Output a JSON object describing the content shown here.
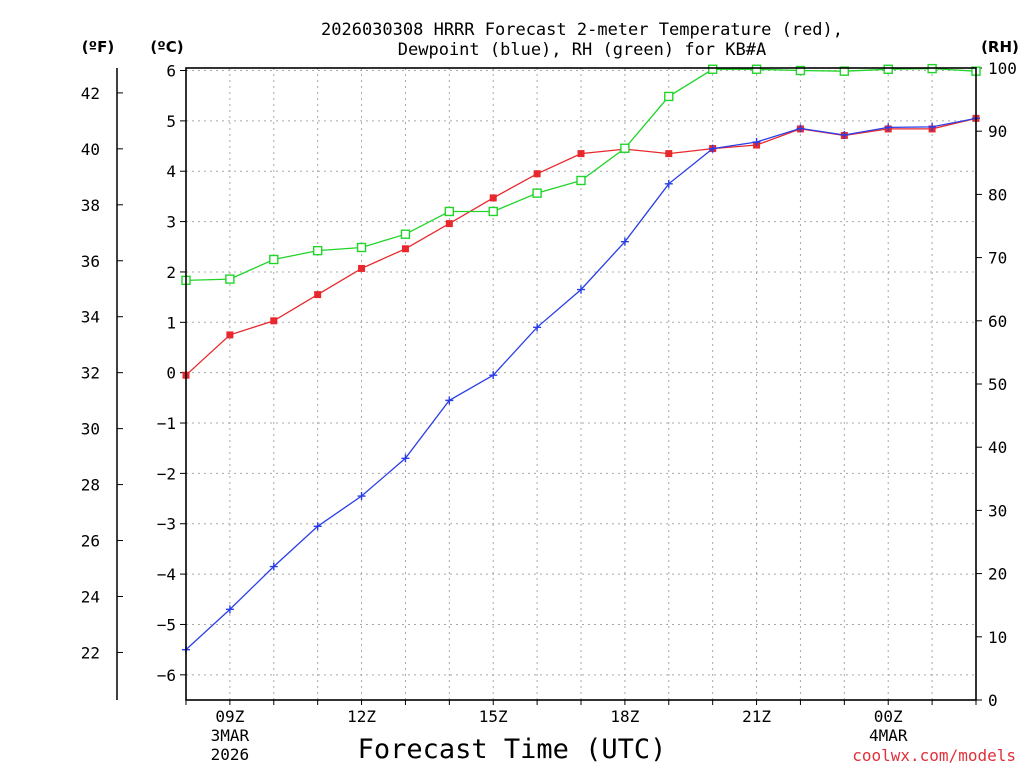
{
  "chart_data": {
    "type": "line",
    "title_line1": "2026030308 HRRR Forecast 2-meter Temperature (red),",
    "title_line2": "Dewpoint (blue), RH (green) for KB#A",
    "xlabel": "Forecast Time (UTC)",
    "credit": "coolwx.com/models",
    "units": {
      "fahrenheit": "(ºF)",
      "celsius": "(ºC)",
      "rh": "(RH)"
    },
    "grid": true,
    "x_hours": [
      8,
      9,
      10,
      11,
      12,
      13,
      14,
      15,
      16,
      17,
      18,
      19,
      20,
      21,
      22,
      23,
      24,
      25,
      26
    ],
    "xlim": [
      8,
      26
    ],
    "x_ticks": [
      {
        "hour": 9,
        "lines": [
          "09Z",
          "3MAR",
          "2026"
        ]
      },
      {
        "hour": 12,
        "lines": [
          "12Z"
        ]
      },
      {
        "hour": 15,
        "lines": [
          "15Z"
        ]
      },
      {
        "hour": 18,
        "lines": [
          "18Z"
        ]
      },
      {
        "hour": 21,
        "lines": [
          "21Z"
        ]
      },
      {
        "hour": 24,
        "lines": [
          "00Z",
          "4MAR"
        ]
      }
    ],
    "celsius_ylim": [
      -6.5,
      6.05
    ],
    "celsius_ticks": [
      {
        "value": 6,
        "label": "6"
      },
      {
        "value": 5,
        "label": "5"
      },
      {
        "value": 4,
        "label": "4"
      },
      {
        "value": 3,
        "label": "3"
      },
      {
        "value": 2,
        "label": "2"
      },
      {
        "value": 1,
        "label": "1"
      },
      {
        "value": 0,
        "label": "0"
      },
      {
        "value": -1,
        "label": "−1"
      },
      {
        "value": -2,
        "label": "−2"
      },
      {
        "value": -3,
        "label": "−3"
      },
      {
        "value": -4,
        "label": "−4"
      },
      {
        "value": -5,
        "label": "−5"
      },
      {
        "value": -6,
        "label": "−6"
      }
    ],
    "fahrenheit_ticks": [
      {
        "value": 42,
        "label": "42"
      },
      {
        "value": 40,
        "label": "40"
      },
      {
        "value": 38,
        "label": "38"
      },
      {
        "value": 36,
        "label": "36"
      },
      {
        "value": 34,
        "label": "34"
      },
      {
        "value": 32,
        "label": "32"
      },
      {
        "value": 30,
        "label": "30"
      },
      {
        "value": 28,
        "label": "28"
      },
      {
        "value": 26,
        "label": "26"
      },
      {
        "value": 24,
        "label": "24"
      },
      {
        "value": 22,
        "label": "22"
      }
    ],
    "rh_ylim": [
      0,
      100
    ],
    "rh_ticks": [
      {
        "value": 100,
        "label": "100"
      },
      {
        "value": 90,
        "label": "90"
      },
      {
        "value": 80,
        "label": "80"
      },
      {
        "value": 70,
        "label": "70"
      },
      {
        "value": 60,
        "label": "60"
      },
      {
        "value": 50,
        "label": "50"
      },
      {
        "value": 40,
        "label": "40"
      },
      {
        "value": 30,
        "label": "30"
      },
      {
        "value": 20,
        "label": "20"
      },
      {
        "value": 10,
        "label": "10"
      },
      {
        "value": 0,
        "label": "0"
      }
    ],
    "series": [
      {
        "name": "Temperature",
        "units": "C",
        "color": "#e8282c",
        "marker": "filled-square",
        "values": [
          -0.05,
          0.75,
          1.03,
          1.55,
          2.07,
          2.46,
          2.96,
          3.47,
          3.95,
          4.35,
          4.44,
          4.35,
          4.45,
          4.52,
          4.84,
          4.71,
          4.84,
          4.84,
          5.05
        ]
      },
      {
        "name": "Dewpoint",
        "units": "C",
        "color": "#2a3ee8",
        "marker": "plus",
        "values": [
          -5.5,
          -4.7,
          -3.85,
          -3.05,
          -2.45,
          -1.7,
          -0.55,
          -0.05,
          0.9,
          1.65,
          2.6,
          3.75,
          4.45,
          4.58,
          4.85,
          4.72,
          4.87,
          4.88,
          5.05
        ]
      },
      {
        "name": "RH",
        "units": "%",
        "color": "#22d42a",
        "marker": "open-square",
        "values": [
          66.4,
          66.6,
          69.7,
          71.1,
          71.6,
          73.7,
          77.3,
          77.3,
          80.2,
          82.2,
          87.3,
          95.5,
          99.8,
          99.8,
          99.6,
          99.5,
          99.8,
          99.9,
          99.5
        ]
      }
    ]
  }
}
